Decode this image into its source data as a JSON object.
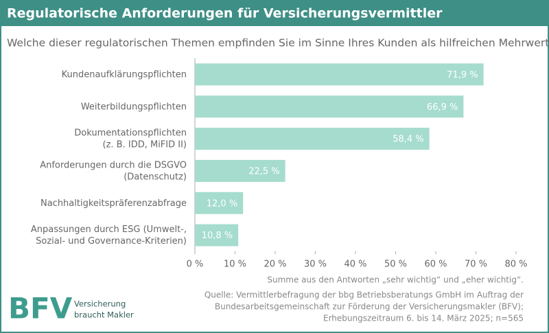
{
  "chart_data": {
    "type": "bar",
    "orientation": "horizontal",
    "title": "Regulatorische Anforderungen für Versicherungsvermittler",
    "subtitle": "Welche dieser regulatorischen Themen empfinden Sie im Sinne Ihres Kunden als hilfreichen Mehrwert?",
    "categories": [
      [
        "Kundenaufklärungspflichten"
      ],
      [
        "Weiterbildungspflichten"
      ],
      [
        "Dokumentationspflichten",
        "(z. B. IDD, MiFID II)"
      ],
      [
        "Anforderungen durch die DSGVO",
        "(Datenschutz)"
      ],
      [
        "Nachhaltigkeitspräferenzabfrage"
      ],
      [
        "Anpassungen durch ESG (Umwelt-,",
        "Sozial- und Governance-Kriterien)"
      ]
    ],
    "values": [
      71.9,
      66.9,
      58.4,
      22.5,
      12.0,
      10.8
    ],
    "value_labels": [
      "71,9 %",
      "66,9 %",
      "58,4 %",
      "22,5 %",
      "12,0 %",
      "10,8 %"
    ],
    "color": "#a5dccd",
    "xlim": [
      0,
      80
    ],
    "xticks": [
      {
        "value": 0,
        "label": "0 %"
      },
      {
        "value": 10,
        "label": "10 %"
      },
      {
        "value": 20,
        "label": "20 %"
      },
      {
        "value": 30,
        "label": "30 %"
      },
      {
        "value": 40,
        "label": "40 %"
      },
      {
        "value": 50,
        "label": "50 %"
      },
      {
        "value": 60,
        "label": "60 %"
      },
      {
        "value": 70,
        "label": "70 %"
      },
      {
        "value": 80,
        "label": "80 %"
      }
    ],
    "note": "Summe aus den Antworten „sehr wichtig“ und „eher wichtig“.",
    "source": [
      "Quelle: Vermittlerbefragung der bbg Betriebsberatungs GmbH im Auftrag der",
      "Bundesarbeitsgemeinschaft zur Förderung der Versicherungsmakler (BFV);",
      "Erhebungszeitraum 6. bis 14. März 2025; n=565"
    ],
    "logo": {
      "mark": "BFV",
      "tagline": [
        "Versicherung",
        "braucht Makler"
      ]
    }
  }
}
